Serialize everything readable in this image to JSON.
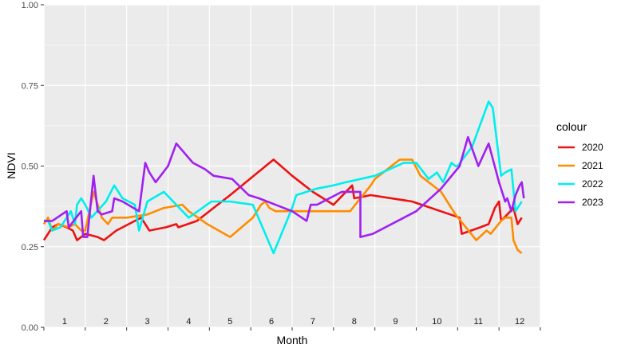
{
  "chart_data": {
    "type": "line",
    "title": "",
    "xlabel": "Month",
    "ylabel": "NDVI",
    "x_categories": [
      "1",
      "2",
      "3",
      "4",
      "5",
      "6",
      "7",
      "8",
      "9",
      "10",
      "11",
      "12"
    ],
    "xlim": [
      1,
      13
    ],
    "ylim": [
      0,
      1
    ],
    "y_ticks": [
      {
        "value": 0,
        "label": "0.00"
      },
      {
        "value": 0.25,
        "label": "0.25"
      },
      {
        "value": 0.5,
        "label": "0.50"
      },
      {
        "value": 0.75,
        "label": "0.75"
      },
      {
        "value": 1,
        "label": "1.00"
      }
    ],
    "grid": true,
    "panel_background": "#ebebeb",
    "grid_color": "#ffffff",
    "legend": {
      "title": "colour",
      "position": "right"
    },
    "series": [
      {
        "name": "2020",
        "color": "#ee1111",
        "points": [
          [
            1.0,
            0.27
          ],
          [
            1.2,
            0.31
          ],
          [
            1.35,
            0.32
          ],
          [
            1.55,
            0.31
          ],
          [
            1.7,
            0.3
          ],
          [
            1.8,
            0.27
          ],
          [
            1.9,
            0.28
          ],
          [
            2.0,
            0.29
          ],
          [
            2.3,
            0.28
          ],
          [
            2.45,
            0.27
          ],
          [
            2.75,
            0.3
          ],
          [
            3.2,
            0.33
          ],
          [
            3.35,
            0.34
          ],
          [
            3.55,
            0.3
          ],
          [
            3.95,
            0.31
          ],
          [
            4.2,
            0.32
          ],
          [
            4.25,
            0.31
          ],
          [
            4.7,
            0.33
          ],
          [
            5.1,
            0.37
          ],
          [
            5.5,
            0.41
          ],
          [
            6.55,
            0.52
          ],
          [
            7.0,
            0.47
          ],
          [
            7.5,
            0.42
          ],
          [
            8.0,
            0.38
          ],
          [
            8.45,
            0.44
          ],
          [
            8.5,
            0.4
          ],
          [
            8.9,
            0.41
          ],
          [
            9.9,
            0.39
          ],
          [
            11.05,
            0.34
          ],
          [
            11.1,
            0.29
          ],
          [
            11.55,
            0.31
          ],
          [
            11.75,
            0.32
          ],
          [
            11.9,
            0.37
          ],
          [
            12.0,
            0.39
          ],
          [
            12.05,
            0.33
          ],
          [
            12.35,
            0.37
          ],
          [
            12.45,
            0.32
          ],
          [
            12.55,
            0.34
          ]
        ]
      },
      {
        "name": "2021",
        "color": "#ff8c00",
        "points": [
          [
            1.0,
            0.32
          ],
          [
            1.1,
            0.34
          ],
          [
            1.2,
            0.3
          ],
          [
            1.35,
            0.32
          ],
          [
            1.6,
            0.31
          ],
          [
            1.75,
            0.32
          ],
          [
            1.9,
            0.3
          ],
          [
            2.0,
            0.3
          ],
          [
            2.2,
            0.42
          ],
          [
            2.4,
            0.34
          ],
          [
            2.55,
            0.32
          ],
          [
            2.65,
            0.34
          ],
          [
            3.0,
            0.34
          ],
          [
            3.5,
            0.35
          ],
          [
            3.9,
            0.37
          ],
          [
            4.35,
            0.38
          ],
          [
            4.5,
            0.36
          ],
          [
            4.95,
            0.32
          ],
          [
            5.5,
            0.28
          ],
          [
            6.05,
            0.34
          ],
          [
            6.25,
            0.38
          ],
          [
            6.35,
            0.39
          ],
          [
            6.45,
            0.37
          ],
          [
            6.6,
            0.36
          ],
          [
            7.0,
            0.36
          ],
          [
            8.0,
            0.36
          ],
          [
            8.4,
            0.36
          ],
          [
            8.9,
            0.44
          ],
          [
            9.0,
            0.46
          ],
          [
            9.6,
            0.52
          ],
          [
            9.9,
            0.52
          ],
          [
            10.1,
            0.47
          ],
          [
            10.6,
            0.42
          ],
          [
            10.95,
            0.35
          ],
          [
            11.2,
            0.31
          ],
          [
            11.45,
            0.27
          ],
          [
            11.7,
            0.3
          ],
          [
            11.8,
            0.29
          ],
          [
            12.05,
            0.33
          ],
          [
            12.15,
            0.34
          ],
          [
            12.3,
            0.34
          ],
          [
            12.35,
            0.27
          ],
          [
            12.45,
            0.24
          ],
          [
            12.55,
            0.23
          ]
        ]
      },
      {
        "name": "2022",
        "color": "#00eeee",
        "points": [
          [
            1.0,
            0.33
          ],
          [
            1.1,
            0.33
          ],
          [
            1.2,
            0.3
          ],
          [
            1.4,
            0.31
          ],
          [
            1.5,
            0.33
          ],
          [
            1.65,
            0.36
          ],
          [
            1.75,
            0.32
          ],
          [
            1.8,
            0.38
          ],
          [
            1.9,
            0.4
          ],
          [
            2.0,
            0.38
          ],
          [
            2.15,
            0.34
          ],
          [
            2.5,
            0.39
          ],
          [
            2.7,
            0.44
          ],
          [
            2.9,
            0.4
          ],
          [
            3.2,
            0.38
          ],
          [
            3.3,
            0.3
          ],
          [
            3.5,
            0.39
          ],
          [
            3.9,
            0.42
          ],
          [
            4.5,
            0.34
          ],
          [
            5.05,
            0.39
          ],
          [
            5.5,
            0.39
          ],
          [
            6.05,
            0.38
          ],
          [
            6.55,
            0.23
          ],
          [
            7.0,
            0.37
          ],
          [
            7.1,
            0.41
          ],
          [
            7.6,
            0.43
          ],
          [
            8.0,
            0.44
          ],
          [
            8.3,
            0.45
          ],
          [
            9.0,
            0.47
          ],
          [
            9.7,
            0.51
          ],
          [
            10.0,
            0.51
          ],
          [
            10.3,
            0.46
          ],
          [
            10.5,
            0.48
          ],
          [
            10.65,
            0.45
          ],
          [
            10.85,
            0.51
          ],
          [
            10.95,
            0.5
          ],
          [
            11.0,
            0.5
          ],
          [
            11.35,
            0.56
          ],
          [
            11.75,
            0.7
          ],
          [
            11.85,
            0.68
          ],
          [
            12.05,
            0.47
          ],
          [
            12.15,
            0.48
          ],
          [
            12.3,
            0.49
          ],
          [
            12.4,
            0.36
          ],
          [
            12.5,
            0.38
          ],
          [
            12.55,
            0.39
          ]
        ]
      },
      {
        "name": "2023",
        "color": "#a020f0",
        "points": [
          [
            1.0,
            0.33
          ],
          [
            1.2,
            0.33
          ],
          [
            1.55,
            0.36
          ],
          [
            1.6,
            0.31
          ],
          [
            1.9,
            0.36
          ],
          [
            1.95,
            0.28
          ],
          [
            2.05,
            0.28
          ],
          [
            2.2,
            0.47
          ],
          [
            2.3,
            0.36
          ],
          [
            2.4,
            0.35
          ],
          [
            2.65,
            0.36
          ],
          [
            2.7,
            0.4
          ],
          [
            2.9,
            0.39
          ],
          [
            3.3,
            0.36
          ],
          [
            3.45,
            0.51
          ],
          [
            3.55,
            0.48
          ],
          [
            3.7,
            0.45
          ],
          [
            4.0,
            0.5
          ],
          [
            4.2,
            0.57
          ],
          [
            4.6,
            0.51
          ],
          [
            4.9,
            0.49
          ],
          [
            5.1,
            0.47
          ],
          [
            5.55,
            0.46
          ],
          [
            5.95,
            0.41
          ],
          [
            6.2,
            0.4
          ],
          [
            7.0,
            0.36
          ],
          [
            7.35,
            0.33
          ],
          [
            7.45,
            0.38
          ],
          [
            7.6,
            0.38
          ],
          [
            8.2,
            0.42
          ],
          [
            8.65,
            0.42
          ],
          [
            8.65,
            0.28
          ],
          [
            8.95,
            0.29
          ],
          [
            10.0,
            0.36
          ],
          [
            10.6,
            0.43
          ],
          [
            11.05,
            0.5
          ],
          [
            11.25,
            0.59
          ],
          [
            11.5,
            0.5
          ],
          [
            11.75,
            0.57
          ],
          [
            12.0,
            0.45
          ],
          [
            12.15,
            0.39
          ],
          [
            12.2,
            0.4
          ],
          [
            12.3,
            0.36
          ],
          [
            12.4,
            0.41
          ],
          [
            12.5,
            0.44
          ],
          [
            12.55,
            0.45
          ],
          [
            12.6,
            0.4
          ]
        ]
      }
    ]
  }
}
